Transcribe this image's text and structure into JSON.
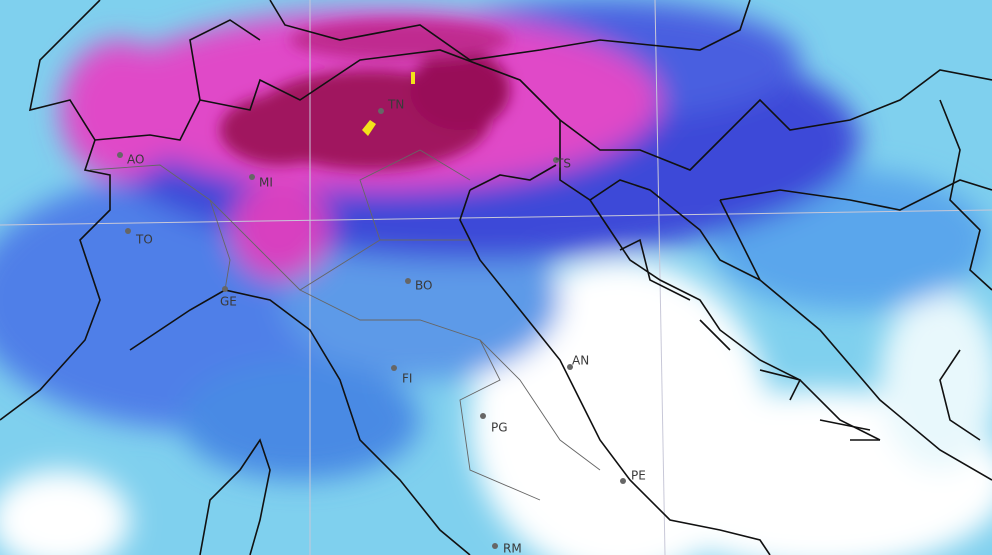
{
  "cities": [
    "AO",
    "MI",
    "TN",
    "TS",
    "TO",
    "BO",
    "GE",
    "AN",
    "FI",
    "PG",
    "PE",
    "RM"
  ]
}
